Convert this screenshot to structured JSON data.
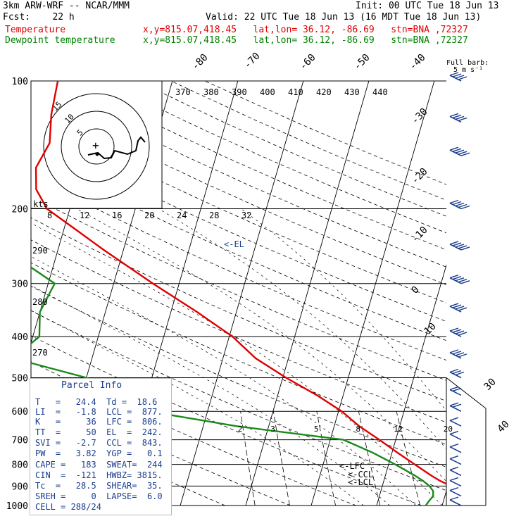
{
  "header": {
    "model": "3km ARW-WRF -- NCAR/MMM",
    "init": "Init: 00 UTC Tue 18 Jun 13",
    "fcst": "Fcst:    22 h",
    "valid": "Valid: 22 UTC Tue 18 Jun 13 (16 MDT Tue 18 Jun 13)",
    "temp_label": "Temperature",
    "temp_loc": "x,y=815.07,418.45   lat,lon= 36.12, -86.69   stn=BNA ,72327",
    "dew_label": "Dewpoint temperature",
    "dew_loc": "x,y=815.07,418.45   lat,lon= 36.12, -86.69   stn=BNA ,72327"
  },
  "wind_key": {
    "line1": "Full barb:",
    "line2": "5 m s⁻¹"
  },
  "parcel": {
    "title": "Parcel Info",
    "rows": [
      "T   =   24.4  Td =  18.6",
      "LI  =   -1.8  LCL =  877.",
      "K   =     36  LFC =  806.",
      "TT  =     50  EL  =  242.",
      "SVI =   -2.7  CCL =  843.",
      "PW  =   3.82  YGP =   0.1",
      "CAPE =   183  SWEAT=  244",
      "CIN  =  -121  HWBZ= 3815.",
      "Tc  =   28.5  SHEAR=  35.",
      "SREH =     0  LAPSE=  6.0",
      "CELL = 288/24"
    ]
  },
  "annotations": {
    "el": "<-EL",
    "lfc": "<-LFC",
    "ccl": "<-CCL",
    "lcl": "<-LCL"
  },
  "hodograph": {
    "rings": [
      "5",
      "10",
      "15"
    ]
  },
  "colors": {
    "temperature": "#e00000",
    "dewpoint": "#1a8a1a",
    "frame": "#000000",
    "text_blue": "#1a3d8f"
  },
  "chart_data": {
    "type": "line",
    "title": "",
    "xlabel": "",
    "ylabel": "",
    "pressure_levels": [
      100,
      200,
      300,
      400,
      500,
      600,
      700,
      800,
      900,
      1000
    ],
    "isotherm_labels": [
      "-80",
      "-70",
      "-60",
      "-50",
      "-40",
      "-30",
      "-20",
      "-10",
      "0",
      "10",
      "30",
      "40"
    ],
    "theta_labels": [
      "370",
      "380",
      "390",
      "400",
      "410",
      "420",
      "430",
      "440"
    ],
    "dryadiabat_labels": [
      "290",
      "280",
      "270"
    ],
    "wind_speed_axis": {
      "unit": "kts",
      "ticks": [
        "8",
        "12",
        "16",
        "20",
        "24",
        "28",
        "32"
      ]
    },
    "mixing_ratio_labels": [
      "2",
      "3",
      "5",
      "8",
      "12",
      "20"
    ],
    "series": [
      {
        "name": "Temperature",
        "p": [
          1000,
          975,
          950,
          925,
          900,
          875,
          850,
          800,
          750,
          700,
          650,
          600,
          550,
          500,
          450,
          400,
          350,
          300,
          250,
          220,
          200,
          180,
          160,
          140,
          120,
          100
        ],
        "t": [
          28.8,
          27.5,
          25.2,
          22.5,
          20.5,
          18.6,
          17.0,
          14.0,
          10.8,
          7.5,
          3.8,
          0.5,
          -4.0,
          -9.5,
          -15.0,
          -19.5,
          -26.0,
          -34.0,
          -43.0,
          -49.0,
          -53.5,
          -56.0,
          -57.0,
          -56.0,
          -57.0,
          -57.5
        ]
      },
      {
        "name": "Dewpoint temperature",
        "p": [
          1000,
          975,
          950,
          925,
          900,
          875,
          850,
          800,
          750,
          700,
          650,
          600,
          550,
          500,
          450,
          400,
          350,
          300,
          250,
          200,
          180,
          160,
          140,
          120,
          100
        ],
        "t": [
          17.5,
          17.8,
          18.2,
          18.0,
          17.2,
          16.0,
          14.5,
          11.0,
          7.0,
          2.0,
          -15.0,
          -29.0,
          -34.0,
          -40.0,
          -52.0,
          -49.0,
          -50.0,
          -49.0,
          -58.0,
          -66.0,
          -72.0,
          -78.0,
          -84.0,
          -83.0,
          -82.0
        ]
      }
    ],
    "wind_profile": {
      "p": [
        1000,
        950,
        900,
        850,
        800,
        750,
        700,
        650,
        600,
        550,
        500,
        450,
        400,
        350,
        300,
        250,
        200,
        150,
        125,
        100
      ],
      "speed_ms": [
        4,
        6,
        7,
        6,
        5,
        5,
        4,
        5,
        8,
        12,
        14,
        18,
        20,
        22,
        24,
        25,
        26,
        25,
        22,
        20
      ]
    }
  }
}
